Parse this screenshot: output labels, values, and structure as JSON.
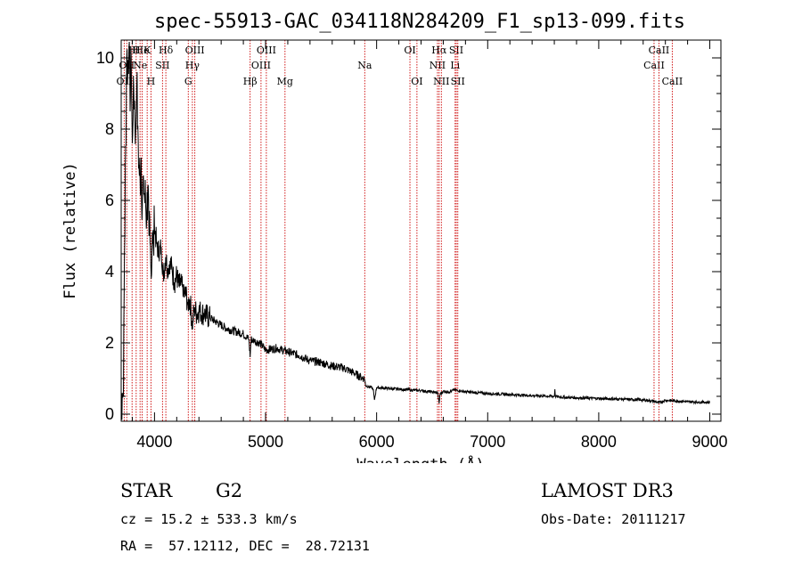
{
  "chart_data": {
    "type": "line",
    "title": "spec-55913-GAC_034118N284209_F1_sp13-099.fits",
    "xlabel": "Wavelength (Å)",
    "ylabel": "Flux (relative)",
    "xlim": [
      3700,
      9100
    ],
    "ylim": [
      -0.2,
      10.5
    ],
    "xticks": [
      4000,
      5000,
      6000,
      7000,
      8000,
      9000
    ],
    "yticks": [
      0,
      2,
      4,
      6,
      8,
      10
    ],
    "series": [
      {
        "name": "flux",
        "x": [
          3700,
          3710,
          3720,
          3730,
          3740,
          3750,
          3760,
          3770,
          3780,
          3790,
          3800,
          3810,
          3820,
          3830,
          3840,
          3850,
          3860,
          3870,
          3880,
          3890,
          3900,
          3910,
          3920,
          3930,
          3940,
          3950,
          3960,
          3970,
          3980,
          3990,
          4000,
          4020,
          4040,
          4060,
          4080,
          4100,
          4120,
          4140,
          4160,
          4180,
          4200,
          4220,
          4240,
          4260,
          4280,
          4300,
          4320,
          4340,
          4360,
          4380,
          4400,
          4450,
          4500,
          4550,
          4600,
          4650,
          4700,
          4750,
          4800,
          4850,
          4861,
          4870,
          4900,
          4950,
          5000,
          5100,
          5200,
          5300,
          5400,
          5500,
          5600,
          5700,
          5800,
          5850,
          5890,
          5900,
          5950,
          5970,
          5980,
          6000,
          6100,
          6200,
          6300,
          6400,
          6500,
          6550,
          6563,
          6570,
          6600,
          6650,
          6700,
          6800,
          6900,
          7000,
          7200,
          7400,
          7600,
          7605,
          7610,
          7650,
          7700,
          7800,
          8000,
          8200,
          8400,
          8500,
          8542,
          8600,
          8700,
          8800,
          8900,
          9000
        ],
        "y": [
          0.4,
          0.6,
          0.5,
          4.5,
          7.5,
          10.0,
          9.8,
          10.3,
          8.5,
          10.0,
          7.6,
          9.5,
          8.8,
          7.9,
          9.2,
          8.1,
          7.0,
          6.6,
          7.2,
          5.8,
          6.7,
          6.1,
          5.9,
          5.5,
          6.4,
          5.0,
          4.8,
          3.8,
          5.1,
          4.7,
          5.2,
          4.8,
          4.5,
          4.7,
          3.9,
          4.4,
          4.1,
          4.3,
          4.0,
          3.7,
          3.9,
          3.6,
          3.7,
          3.3,
          3.4,
          3.1,
          3.2,
          2.5,
          3.0,
          2.8,
          2.9,
          2.8,
          2.7,
          2.6,
          2.5,
          2.4,
          2.35,
          2.3,
          2.25,
          2.1,
          1.6,
          2.1,
          2.05,
          2.0,
          1.8,
          1.85,
          1.75,
          1.65,
          1.5,
          1.45,
          1.35,
          1.3,
          1.15,
          1.05,
          1.0,
          0.8,
          0.75,
          0.7,
          0.4,
          0.75,
          0.72,
          0.7,
          0.68,
          0.66,
          0.62,
          0.6,
          0.3,
          0.55,
          0.65,
          0.62,
          0.68,
          0.63,
          0.6,
          0.58,
          0.55,
          0.52,
          0.5,
          0.7,
          0.5,
          0.48,
          0.47,
          0.46,
          0.44,
          0.42,
          0.4,
          0.36,
          0.32,
          0.39,
          0.37,
          0.35,
          0.34,
          0.33
        ]
      }
    ],
    "lines": [
      {
        "wl": 3727,
        "label": "OII",
        "row": 3
      },
      {
        "wl": 3750,
        "label": "OII",
        "row": 2
      },
      {
        "wl": 3798,
        "label": "H",
        "row": 1
      },
      {
        "wl": 3835,
        "label": "H",
        "row": 1
      },
      {
        "wl": 3870,
        "label": "Ne",
        "row": 2
      },
      {
        "wl": 3889,
        "label": "He",
        "row": 1
      },
      {
        "wl": 3934,
        "label": "K",
        "row": 1
      },
      {
        "wl": 3968,
        "label": "H",
        "row": 3
      },
      {
        "wl": 4072,
        "label": "SII",
        "row": 2
      },
      {
        "wl": 4102,
        "label": "Hδ",
        "row": 1
      },
      {
        "wl": 4304,
        "label": "G",
        "row": 3
      },
      {
        "wl": 4341,
        "label": "Hγ",
        "row": 2
      },
      {
        "wl": 4363,
        "label": "OIII",
        "row": 1
      },
      {
        "wl": 4861,
        "label": "Hβ",
        "row": 3
      },
      {
        "wl": 4959,
        "label": "OIII",
        "row": 2
      },
      {
        "wl": 5007,
        "label": "OIII",
        "row": 1
      },
      {
        "wl": 5175,
        "label": "Mg",
        "row": 3
      },
      {
        "wl": 5893,
        "label": "Na",
        "row": 2
      },
      {
        "wl": 6300,
        "label": "OI",
        "row": 1
      },
      {
        "wl": 6363,
        "label": "OI",
        "row": 3
      },
      {
        "wl": 6548,
        "label": "NII",
        "row": 2
      },
      {
        "wl": 6563,
        "label": "Hα",
        "row": 1
      },
      {
        "wl": 6583,
        "label": "NII",
        "row": 3
      },
      {
        "wl": 6707,
        "label": "Li",
        "row": 2
      },
      {
        "wl": 6717,
        "label": "SII",
        "row": 1
      },
      {
        "wl": 6731,
        "label": "SII",
        "row": 3
      },
      {
        "wl": 8498,
        "label": "CaII",
        "row": 2
      },
      {
        "wl": 8542,
        "label": "CaII",
        "row": 1
      },
      {
        "wl": 8662,
        "label": "CaII",
        "row": 3
      }
    ]
  },
  "info": {
    "class": "STAR",
    "subclass": "G2",
    "survey": "LAMOST DR3",
    "redshift": "cz = 15.2 ± 533.3 km/s",
    "obsdate": "Obs-Date: 20111217",
    "coords": "RA =  57.12112, DEC =  28.72131"
  },
  "colors": {
    "line_marker": "#cc0000",
    "spectrum": "#000000"
  }
}
